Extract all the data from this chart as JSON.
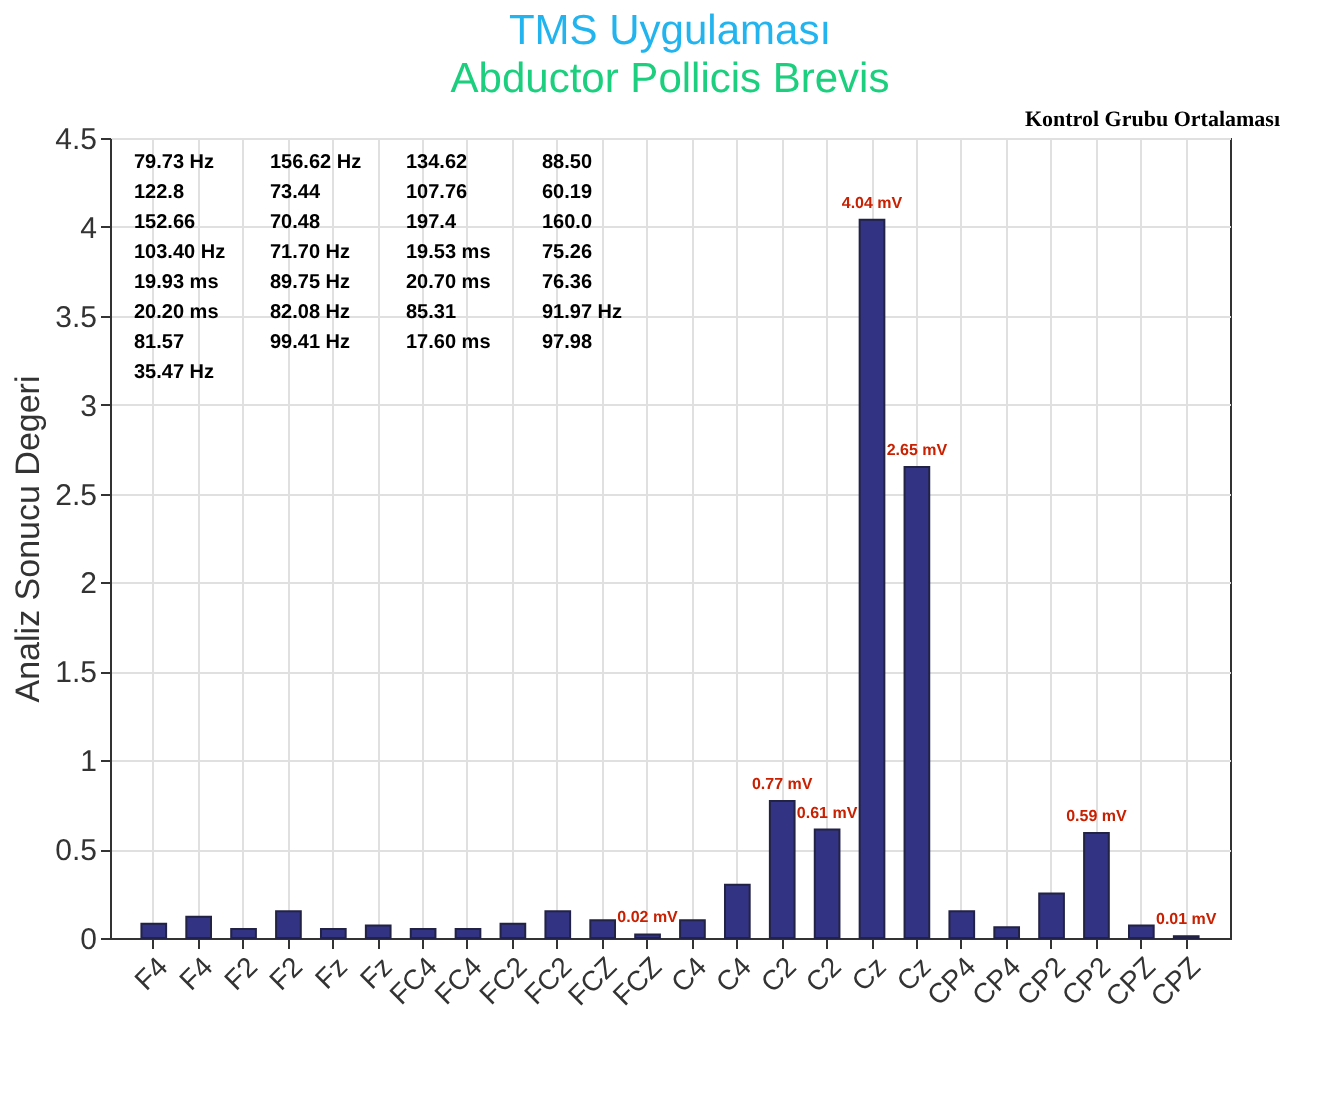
{
  "chart_data": {
    "type": "bar",
    "title": "TMS Uygulaması",
    "subtitle": "Abductor Pollicis Brevis",
    "ylabel": "Analiz Sonucu Degeri",
    "categories": [
      "F4",
      "F4",
      "F2",
      "F2",
      "Fz",
      "Fz",
      "FC4",
      "FC4",
      "FC2",
      "FC2",
      "FCZ",
      "FCZ",
      "C4",
      "C4",
      "C2",
      "C2",
      "Cz",
      "Cz",
      "CP4",
      "CP4",
      "CP2",
      "CP2",
      "CPZ",
      "CPZ"
    ],
    "series": [
      {
        "color": "#333383",
        "values": [
          0.08,
          0.12,
          0.05,
          0.15,
          0.05,
          0.07,
          0.05,
          0.05,
          0.08,
          0.15,
          0.1,
          0.02,
          0.1,
          0.3,
          0.77,
          0.61,
          4.04,
          2.65,
          0.15,
          0.06,
          0.25,
          0.59,
          0.07,
          0.01
        ],
        "value_labels": [
          null,
          null,
          null,
          null,
          null,
          null,
          null,
          null,
          null,
          null,
          null,
          "0.02 mV",
          null,
          null,
          "0.77 mV",
          "0.61 mV",
          "4.04 mV",
          "2.65 mV",
          null,
          null,
          null,
          "0.59 mV",
          null,
          "0.01 mV"
        ]
      }
    ],
    "ylim": [
      0,
      4.5
    ],
    "yticks": [
      0,
      0.5,
      1,
      1.5,
      2,
      2.5,
      3,
      3.5,
      4,
      4.5
    ],
    "grid": true,
    "annotations": [
      "Kontrol Grubu Ortalaması",
      "79.73 Hz",
      "156.62 Hz",
      "134.62",
      "88.50",
      "122.8",
      "73.44",
      "107.76",
      "60.19",
      "152.66",
      "70.48",
      "197.4",
      "160.0",
      "103.40 Hz",
      "71.70 Hz",
      "19.53 ms",
      "75.26",
      "19.93 ms",
      "89.75 Hz",
      "20.70 ms",
      "76.36",
      "20.20 ms",
      "82.08 Hz",
      "85.31",
      "91.97 Hz",
      "81.57",
      "99.41 Hz",
      "17.60 ms",
      "97.98",
      "35.47 Hz"
    ]
  }
}
